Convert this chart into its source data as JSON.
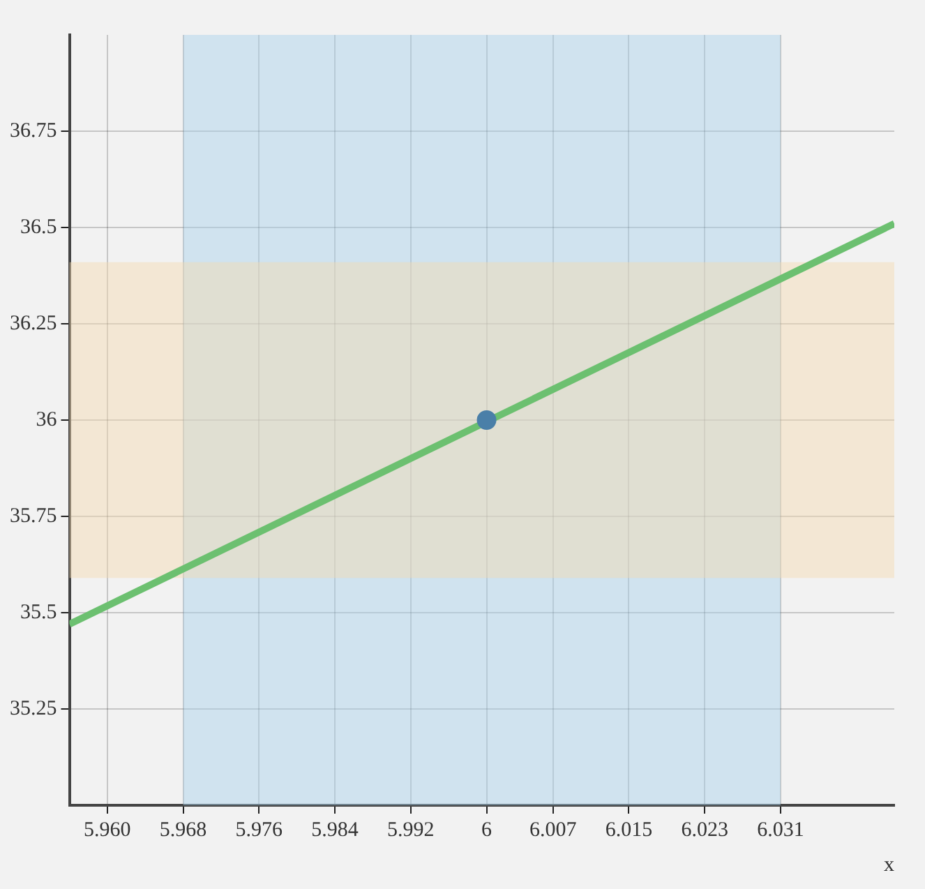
{
  "chart_data": {
    "type": "line",
    "xlabel": "x",
    "series": [
      {
        "color": "#6cc070",
        "x": [
          5.956,
          6.043
        ],
        "values": [
          35.47,
          36.51
        ],
        "marker": "none"
      },
      {
        "type": "scatter",
        "color": "#4a7fa8",
        "x": [
          6
        ],
        "values": [
          36
        ],
        "marker": "circle"
      }
    ],
    "xlim": [
      5.956,
      6.043
    ],
    "ylim": [
      35,
      37
    ],
    "xticks": [
      {
        "value": 5.96,
        "label": "5.960"
      },
      5.968,
      5.976,
      5.984,
      5.992,
      6,
      6.007,
      6.015,
      6.023,
      6.031
    ],
    "yticks": [
      35.25,
      35.5,
      35.75,
      36,
      36.25,
      36.5,
      36.75
    ],
    "bands": [
      {
        "axis": "x",
        "from": 5.968,
        "to": 6.031,
        "color": "#a6d0ec"
      },
      {
        "axis": "y",
        "from": 35.59,
        "to": 36.41,
        "color": "#f5d9b0"
      }
    ],
    "grid": true,
    "legend": false
  }
}
